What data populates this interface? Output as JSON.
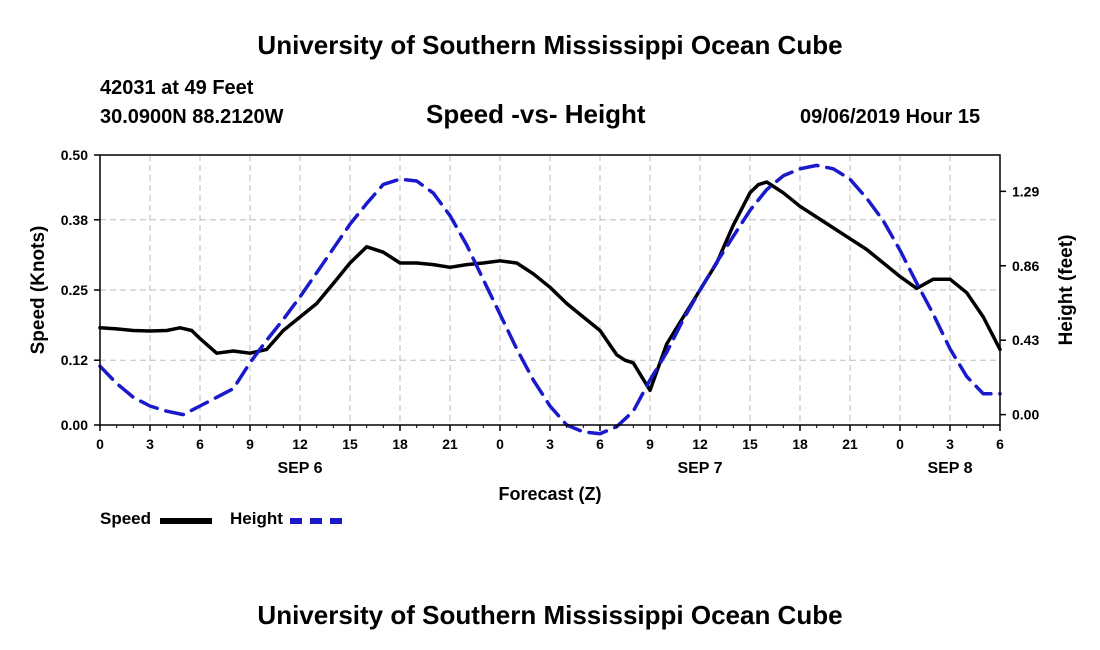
{
  "page": {
    "top_title": "University of Southern Mississippi Ocean Cube",
    "bottom_title": "University of Southern Mississippi Ocean Cube",
    "station": "42031 at 49 Feet",
    "location": "30.0900N 88.2120W",
    "datetime": "09/06/2019 Hour 15"
  },
  "chart_data": {
    "type": "line",
    "title": "Speed -vs- Height",
    "xlabel": "Forecast (Z)",
    "ylabel": "Speed (Knots)",
    "ylabel_right": "Height (feet)",
    "xlim": [
      0,
      54
    ],
    "ylim": [
      0,
      0.5
    ],
    "ylim_right": [
      -0.06,
      1.5
    ],
    "x_ticks": [
      0,
      3,
      6,
      9,
      12,
      15,
      18,
      21,
      24,
      27,
      30,
      33,
      36,
      39,
      42,
      45,
      48,
      51,
      54
    ],
    "x_tick_labels": [
      "0",
      "3",
      "6",
      "9",
      "12",
      "15",
      "18",
      "21",
      "0",
      "3",
      "6",
      "9",
      "12",
      "15",
      "18",
      "21",
      "0",
      "3",
      "6"
    ],
    "day_labels": [
      {
        "x": 12,
        "label": "SEP 6"
      },
      {
        "x": 36,
        "label": "SEP 7"
      },
      {
        "x": 51,
        "label": "SEP 8"
      }
    ],
    "y_ticks": [
      0.0,
      0.12,
      0.25,
      0.38,
      0.5
    ],
    "y_tick_labels": [
      "0.00",
      "0.12",
      "0.25",
      "0.38",
      "0.50"
    ],
    "y_ticks_right": [
      0.0,
      0.43,
      0.86,
      1.29
    ],
    "y_tick_labels_right": [
      "0.00",
      "0.43",
      "0.86",
      "1.29"
    ],
    "grid": true,
    "series": [
      {
        "name": "Speed",
        "axis": "left",
        "color": "#000000",
        "dash": "solid",
        "x": [
          0,
          1,
          2,
          3,
          4,
          4.8,
          5.5,
          6,
          7,
          8,
          9,
          10,
          11,
          12,
          13,
          14,
          15,
          16,
          17,
          18,
          19,
          20,
          21,
          22,
          23,
          24,
          25,
          26,
          27,
          28,
          29,
          30,
          31,
          31.5,
          32,
          33,
          34,
          35,
          36,
          37,
          38,
          39,
          39.5,
          40,
          41,
          42,
          43,
          44,
          45,
          46,
          47,
          48,
          49,
          50,
          51,
          52,
          53,
          54
        ],
        "values": [
          0.18,
          0.178,
          0.175,
          0.174,
          0.175,
          0.18,
          0.175,
          0.16,
          0.133,
          0.137,
          0.133,
          0.14,
          0.175,
          0.2,
          0.225,
          0.262,
          0.3,
          0.33,
          0.32,
          0.3,
          0.3,
          0.297,
          0.292,
          0.297,
          0.3,
          0.304,
          0.3,
          0.28,
          0.255,
          0.225,
          0.2,
          0.175,
          0.13,
          0.12,
          0.115,
          0.064,
          0.15,
          0.2,
          0.25,
          0.3,
          0.37,
          0.43,
          0.445,
          0.45,
          0.43,
          0.405,
          0.385,
          0.365,
          0.345,
          0.325,
          0.3,
          0.275,
          0.253,
          0.27,
          0.27,
          0.245,
          0.2,
          0.14
        ]
      },
      {
        "name": "Height",
        "axis": "right",
        "color": "#1a1acc",
        "dash": "dashed",
        "x": [
          0,
          1,
          2,
          3,
          4,
          5,
          6,
          7,
          8,
          9,
          10,
          11,
          12,
          13,
          14,
          15,
          16,
          17,
          18,
          19,
          20,
          21,
          22,
          23,
          24,
          25,
          26,
          27,
          28,
          29,
          30,
          31,
          32,
          33,
          34,
          35,
          36,
          37,
          38,
          39,
          40,
          41,
          42,
          43,
          44,
          45,
          46,
          47,
          48,
          49,
          50,
          51,
          52,
          53,
          54
        ],
        "values": [
          0.28,
          0.18,
          0.1,
          0.05,
          0.02,
          0.0,
          0.05,
          0.1,
          0.15,
          0.3,
          0.43,
          0.55,
          0.68,
          0.82,
          0.96,
          1.1,
          1.22,
          1.33,
          1.36,
          1.35,
          1.28,
          1.15,
          0.98,
          0.78,
          0.58,
          0.38,
          0.2,
          0.05,
          -0.06,
          -0.1,
          -0.11,
          -0.07,
          0.02,
          0.2,
          0.36,
          0.55,
          0.72,
          0.88,
          1.03,
          1.18,
          1.3,
          1.38,
          1.42,
          1.44,
          1.42,
          1.36,
          1.25,
          1.12,
          0.95,
          0.76,
          0.58,
          0.38,
          0.22,
          0.12,
          0.12
        ]
      }
    ],
    "legend": [
      {
        "label": "Speed",
        "color": "#000000",
        "dash": "solid"
      },
      {
        "label": "Height",
        "color": "#1a1acc",
        "dash": "dashed"
      }
    ],
    "legend_position": "bottom-left"
  }
}
